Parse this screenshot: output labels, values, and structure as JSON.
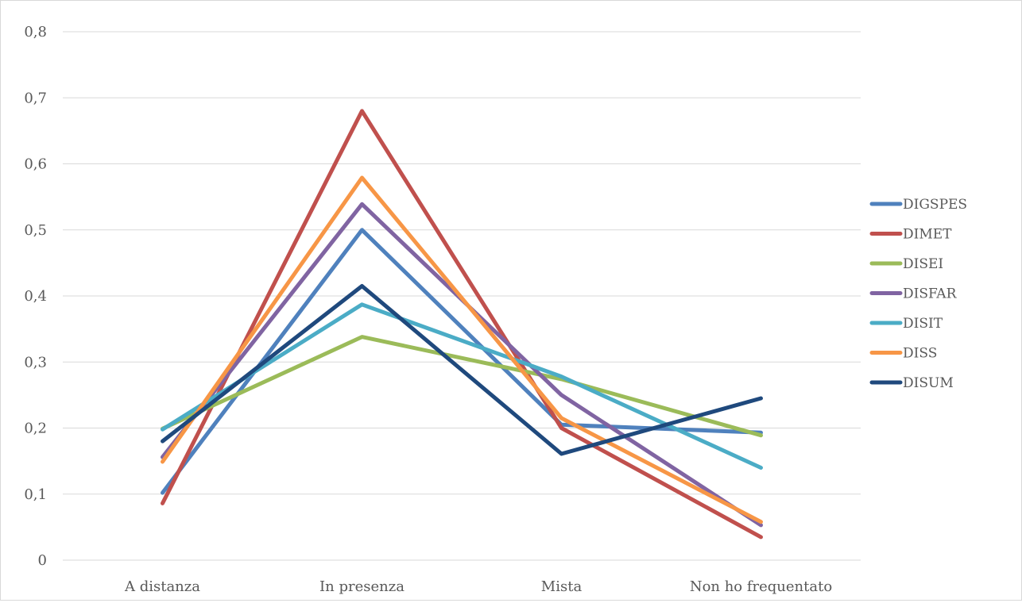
{
  "chart_data": {
    "type": "line",
    "title": "",
    "xlabel": "",
    "ylabel": "",
    "categories": [
      "A distanza",
      "In presenza",
      "Mista",
      "Non ho frequentato"
    ],
    "y_ticks": [
      "0",
      "0,1",
      "0,2",
      "0,3",
      "0,4",
      "0,5",
      "0,6",
      "0,7",
      "0,8"
    ],
    "ylim": [
      0,
      0.8
    ],
    "grid": true,
    "legend_position": "right",
    "series": [
      {
        "name": "DIGSPES",
        "color": "#4F81BD",
        "values": [
          0.102,
          0.5,
          0.205,
          0.193
        ]
      },
      {
        "name": "DIMET",
        "color": "#C0504D",
        "values": [
          0.086,
          0.68,
          0.2,
          0.035
        ]
      },
      {
        "name": "DISEI",
        "color": "#9BBB59",
        "values": [
          0.199,
          0.338,
          0.274,
          0.189
        ]
      },
      {
        "name": "DISFAR",
        "color": "#8064A2",
        "values": [
          0.156,
          0.539,
          0.25,
          0.053
        ]
      },
      {
        "name": "DISIT",
        "color": "#4BACC6",
        "values": [
          0.198,
          0.387,
          0.278,
          0.14
        ]
      },
      {
        "name": "DISS",
        "color": "#F79646",
        "values": [
          0.149,
          0.579,
          0.215,
          0.058
        ]
      },
      {
        "name": "DISUM",
        "color": "#1F497D",
        "values": [
          0.18,
          0.415,
          0.161,
          0.245
        ]
      }
    ]
  }
}
